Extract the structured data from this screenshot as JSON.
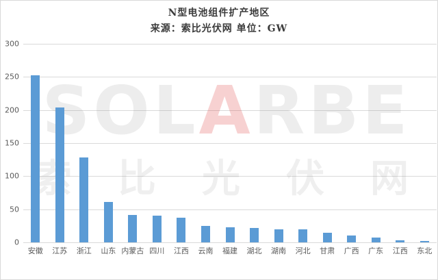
{
  "chart": {
    "title": "N型电池组件扩产地区",
    "subtitle": "来源：索比光伏网 单位：GW"
  },
  "chart_data": {
    "type": "bar",
    "title": "N型电池组件扩产地区",
    "subtitle": "来源：索比光伏网 单位：GW",
    "unit": "GW",
    "categories": [
      "安徽",
      "江苏",
      "浙江",
      "山东",
      "内蒙古",
      "四川",
      "江西",
      "云南",
      "福建",
      "湖北",
      "湖南",
      "河北",
      "甘肃",
      "广西",
      "广东",
      "江西",
      "东北"
    ],
    "values": [
      252,
      204,
      128,
      61,
      41,
      40,
      37,
      25,
      23,
      22,
      20,
      20,
      15,
      10,
      7,
      3,
      2
    ],
    "xlabel": "",
    "ylabel": "",
    "ylim": [
      0,
      300
    ],
    "yticks": [
      0,
      50,
      100,
      150,
      200,
      250,
      300
    ],
    "grid": true,
    "legend": false,
    "bar_color": "#5b9bd5"
  },
  "watermark": {
    "brand_prefix": "SOL",
    "brand_red": "A",
    "brand_suffix": "RBE",
    "chinese_chars": [
      "索",
      "比",
      "光",
      "伏",
      "网"
    ]
  },
  "colors": {
    "bar": "#5b9bd5",
    "gridline": "#d9d9d9",
    "axis_text": "#595959",
    "title_text": "#3b3b3b",
    "watermark_red": "#e14646"
  }
}
